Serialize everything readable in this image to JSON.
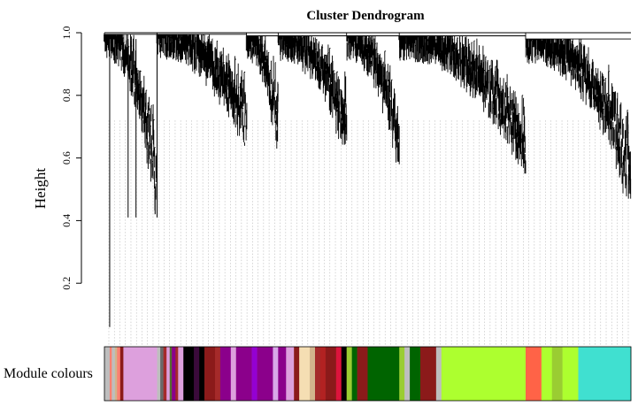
{
  "chart_data": {
    "type": "dendrogram",
    "title": "Cluster Dendrogram",
    "ylabel": "Height",
    "xlabel": "",
    "ylim": [
      0.0,
      1.0
    ],
    "yticks": [
      {
        "value": 0.2,
        "label": "0.2"
      },
      {
        "value": 0.4,
        "label": "0.4"
      },
      {
        "value": 0.6,
        "label": "0.6"
      },
      {
        "value": 0.8,
        "label": "0.8"
      },
      {
        "value": 1.0,
        "label": "1.0"
      }
    ],
    "grid": false,
    "branch_color": "#000000",
    "guide_color": "#b8b8b8",
    "row_label": "Module colours",
    "clusters": [
      {
        "start": 0.0,
        "end": 0.1,
        "join": 0.995,
        "min": 0.42
      },
      {
        "start": 0.1,
        "end": 0.27,
        "join": 0.995,
        "min": 0.65
      },
      {
        "start": 0.27,
        "end": 0.33,
        "join": 0.99,
        "min": 0.63
      },
      {
        "start": 0.33,
        "end": 0.46,
        "join": 0.99,
        "min": 0.63
      },
      {
        "start": 0.46,
        "end": 0.56,
        "join": 0.99,
        "min": 0.58
      },
      {
        "start": 0.56,
        "end": 0.8,
        "join": 0.99,
        "min": 0.55
      },
      {
        "start": 0.8,
        "end": 1.0,
        "join": 0.98,
        "min": 0.47
      }
    ],
    "outlier_leaves": [
      {
        "x": 0.01,
        "height": 0.06
      },
      {
        "x": 0.045,
        "height": 0.41
      },
      {
        "x": 0.06,
        "height": 0.41
      },
      {
        "x": 0.1,
        "height": 0.41
      }
    ],
    "module_colors": [
      {
        "start": 0.0,
        "end": 0.01,
        "color": "#bebebe"
      },
      {
        "start": 0.01,
        "end": 0.014,
        "color": "#fa8072"
      },
      {
        "start": 0.014,
        "end": 0.02,
        "color": "#bebebe"
      },
      {
        "start": 0.02,
        "end": 0.024,
        "color": "#d2b48c"
      },
      {
        "start": 0.024,
        "end": 0.03,
        "color": "#fa8072"
      },
      {
        "start": 0.03,
        "end": 0.036,
        "color": "#8b1a1a"
      },
      {
        "start": 0.036,
        "end": 0.1,
        "color": "#dda0dd"
      },
      {
        "start": 0.1,
        "end": 0.106,
        "color": "#bebebe"
      },
      {
        "start": 0.106,
        "end": 0.112,
        "color": "#696969"
      },
      {
        "start": 0.112,
        "end": 0.118,
        "color": "#a52a2a"
      },
      {
        "start": 0.118,
        "end": 0.124,
        "color": "#dda0dd"
      },
      {
        "start": 0.124,
        "end": 0.128,
        "color": "#556b2f"
      },
      {
        "start": 0.128,
        "end": 0.135,
        "color": "#8b008b"
      },
      {
        "start": 0.135,
        "end": 0.14,
        "color": "#a52a2a"
      },
      {
        "start": 0.14,
        "end": 0.15,
        "color": "#dda0dd"
      },
      {
        "start": 0.15,
        "end": 0.17,
        "color": "#000000"
      },
      {
        "start": 0.17,
        "end": 0.18,
        "color": "#3b0a3b"
      },
      {
        "start": 0.18,
        "end": 0.19,
        "color": "#000000"
      },
      {
        "start": 0.19,
        "end": 0.21,
        "color": "#8b1a1a"
      },
      {
        "start": 0.21,
        "end": 0.22,
        "color": "#a52a2a"
      },
      {
        "start": 0.22,
        "end": 0.24,
        "color": "#8b008b"
      },
      {
        "start": 0.24,
        "end": 0.25,
        "color": "#dda0dd"
      },
      {
        "start": 0.25,
        "end": 0.28,
        "color": "#8b008b"
      },
      {
        "start": 0.28,
        "end": 0.29,
        "color": "#9400d3"
      },
      {
        "start": 0.29,
        "end": 0.32,
        "color": "#8b008b"
      },
      {
        "start": 0.32,
        "end": 0.33,
        "color": "#d8a8e8"
      },
      {
        "start": 0.33,
        "end": 0.345,
        "color": "#8b008b"
      },
      {
        "start": 0.345,
        "end": 0.36,
        "color": "#dda0dd"
      },
      {
        "start": 0.36,
        "end": 0.37,
        "color": "#8b1a1a"
      },
      {
        "start": 0.37,
        "end": 0.39,
        "color": "#f5deb3"
      },
      {
        "start": 0.39,
        "end": 0.4,
        "color": "#d2b48c"
      },
      {
        "start": 0.4,
        "end": 0.41,
        "color": "#a52a2a"
      },
      {
        "start": 0.41,
        "end": 0.42,
        "color": "#b22222"
      },
      {
        "start": 0.42,
        "end": 0.44,
        "color": "#8b1a1a"
      },
      {
        "start": 0.44,
        "end": 0.45,
        "color": "#dc143c"
      },
      {
        "start": 0.45,
        "end": 0.46,
        "color": "#000000"
      },
      {
        "start": 0.46,
        "end": 0.47,
        "color": "#9acd32"
      },
      {
        "start": 0.47,
        "end": 0.48,
        "color": "#006400"
      },
      {
        "start": 0.48,
        "end": 0.5,
        "color": "#8b1a1a"
      },
      {
        "start": 0.5,
        "end": 0.56,
        "color": "#006400"
      },
      {
        "start": 0.56,
        "end": 0.57,
        "color": "#9acd32"
      },
      {
        "start": 0.57,
        "end": 0.58,
        "color": "#bebebe"
      },
      {
        "start": 0.58,
        "end": 0.6,
        "color": "#006400"
      },
      {
        "start": 0.6,
        "end": 0.63,
        "color": "#8b1a1a"
      },
      {
        "start": 0.63,
        "end": 0.64,
        "color": "#bebebe"
      },
      {
        "start": 0.64,
        "end": 0.8,
        "color": "#adff2f"
      },
      {
        "start": 0.8,
        "end": 0.83,
        "color": "#ff6347"
      },
      {
        "start": 0.83,
        "end": 0.85,
        "color": "#adff2f"
      },
      {
        "start": 0.85,
        "end": 0.87,
        "color": "#9acd32"
      },
      {
        "start": 0.87,
        "end": 0.9,
        "color": "#adff2f"
      },
      {
        "start": 0.9,
        "end": 1.0,
        "color": "#40e0d0"
      }
    ]
  }
}
